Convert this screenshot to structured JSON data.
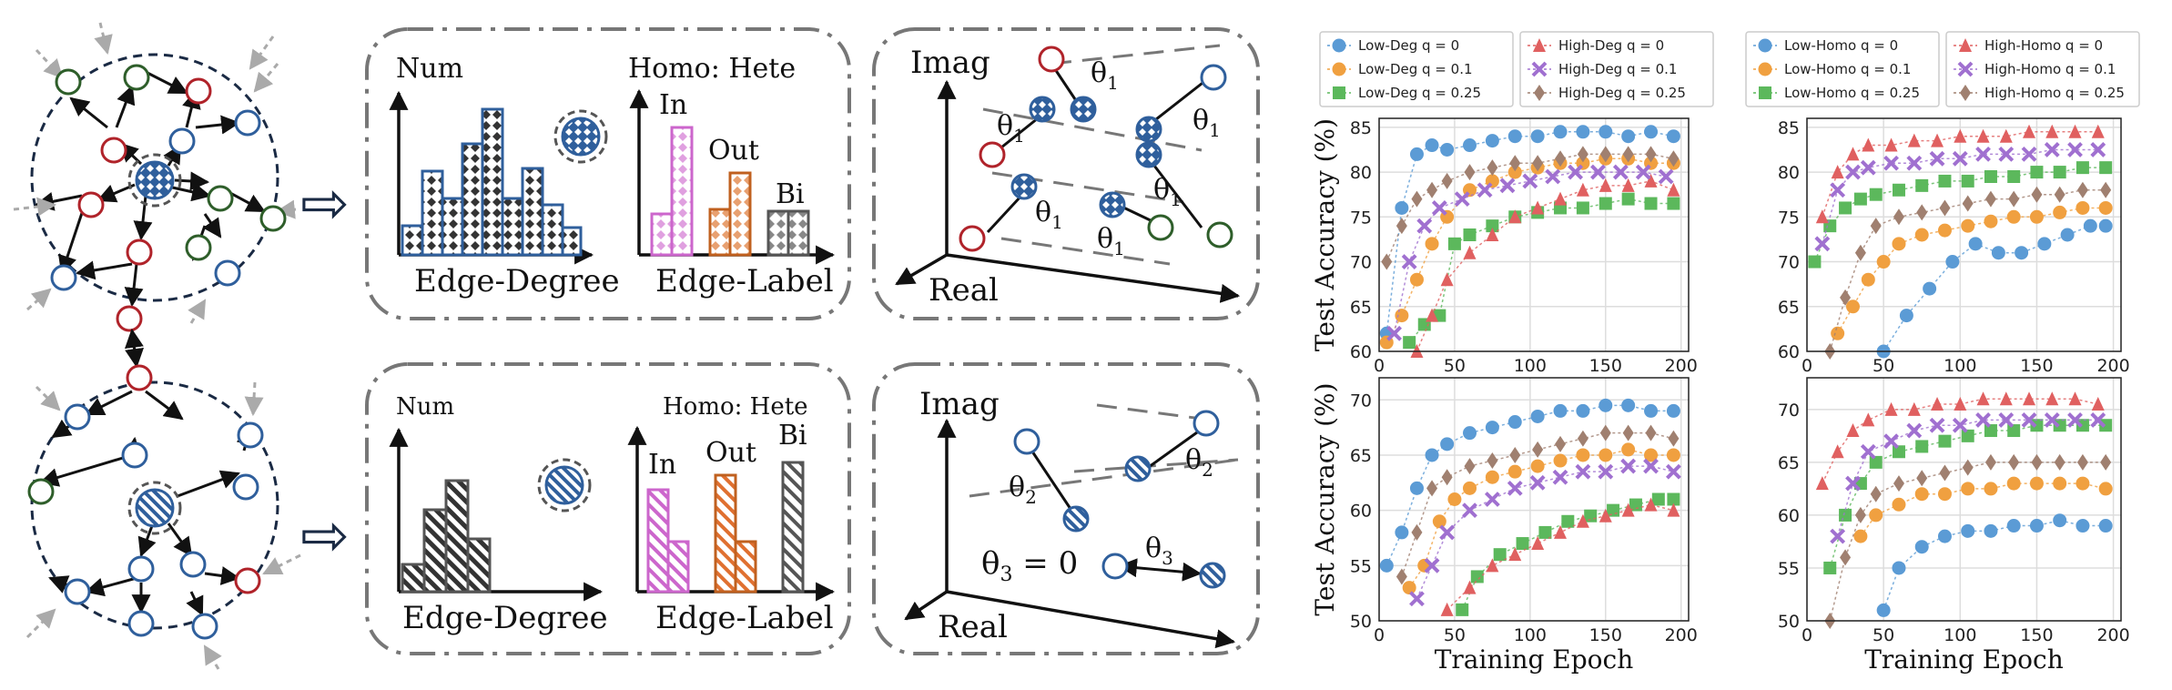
{
  "colors": {
    "blue": "#2f5f9c",
    "red": "#b0232a",
    "green": "#2e5e2a",
    "magenta": "#cc66cc",
    "orange": "#c0601f",
    "gray": "#555555",
    "series_blue": "#5b9bd5",
    "series_orange": "#f0a040",
    "series_green": "#5cb85c",
    "series_red": "#e06060",
    "series_purple": "#a070d0",
    "series_brown": "#a08070"
  },
  "arrow_symbol": "⇨",
  "hist_panels": {
    "top": {
      "num": "Num",
      "homo_hete": "Homo: Hete",
      "in": "In",
      "out": "Out",
      "bi": "Bi",
      "edge_degree": "Edge-Degree",
      "edge_label": "Edge-Label"
    },
    "bottom": {
      "num": "Num",
      "homo_hete": "Homo: Hete",
      "in": "In",
      "out": "Out",
      "bi": "Bi",
      "edge_degree": "Edge-Degree",
      "edge_label": "Edge-Label"
    }
  },
  "phase_panels": {
    "top": {
      "imag": "Imag",
      "real": "Real",
      "theta": "θ",
      "sub": "1"
    },
    "bottom": {
      "imag": "Imag",
      "real": "Real",
      "theta2": "θ",
      "sub2": "2",
      "theta3": "θ",
      "sub3": "3",
      "eq": "θ",
      "eq_sub": "3",
      "eq_rhs": " = 0"
    }
  },
  "chart_data": [
    {
      "type": "line",
      "id": "deg_top",
      "ylabel": "Test Accuracy (%)",
      "xlabel": "",
      "xlim": [
        0,
        205
      ],
      "ylim": [
        60,
        86
      ],
      "xticks": [
        0,
        50,
        100,
        150,
        200
      ],
      "yticks": [
        60,
        65,
        70,
        75,
        80,
        85
      ],
      "grid": true,
      "legend": "top",
      "series": [
        {
          "name": "Low-Deg q = 0",
          "marker": "circle",
          "color": "#5b9bd5",
          "x": [
            5,
            15,
            25,
            35,
            45,
            60,
            75,
            90,
            105,
            120,
            135,
            150,
            165,
            180,
            195
          ],
          "y": [
            62,
            76,
            82,
            83,
            82.5,
            83,
            83.5,
            84,
            84,
            84.5,
            84.5,
            84.5,
            84,
            84.5,
            84
          ]
        },
        {
          "name": "Low-Deg q = 0.1",
          "marker": "circle",
          "color": "#f0a040",
          "x": [
            5,
            15,
            25,
            35,
            45,
            60,
            75,
            90,
            105,
            120,
            135,
            150,
            165,
            180,
            195
          ],
          "y": [
            61,
            64,
            68,
            72,
            75,
            78,
            79,
            80,
            80.5,
            81,
            81,
            81.5,
            81.5,
            81,
            81
          ]
        },
        {
          "name": "Low-Deg q = 0.25",
          "marker": "square",
          "color": "#5cb85c",
          "x": [
            20,
            30,
            40,
            50,
            60,
            75,
            90,
            105,
            120,
            135,
            150,
            165,
            180,
            195
          ],
          "y": [
            61,
            63,
            64,
            72,
            73,
            74,
            75,
            75.5,
            76,
            76,
            76.5,
            77,
            76.5,
            76.5
          ]
        },
        {
          "name": "High-Deg q = 0",
          "marker": "triangle",
          "color": "#e06060",
          "x": [
            25,
            35,
            45,
            60,
            75,
            90,
            105,
            120,
            135,
            150,
            165,
            180,
            195
          ],
          "y": [
            60,
            64,
            68,
            71,
            73,
            75,
            76,
            77,
            78,
            78.5,
            78.5,
            79,
            78
          ]
        },
        {
          "name": "High-Deg q = 0.1",
          "marker": "x",
          "color": "#a070d0",
          "x": [
            10,
            20,
            30,
            40,
            55,
            70,
            85,
            100,
            115,
            130,
            145,
            160,
            175,
            190
          ],
          "y": [
            62,
            70,
            74,
            76,
            77,
            78,
            78.5,
            79,
            79.5,
            80,
            80,
            80,
            80,
            79.5
          ]
        },
        {
          "name": "High-Deg q = 0.25",
          "marker": "diamond",
          "color": "#a08070",
          "x": [
            5,
            15,
            25,
            35,
            45,
            60,
            75,
            90,
            105,
            120,
            135,
            150,
            165,
            180,
            195
          ],
          "y": [
            70,
            74,
            77,
            78,
            79,
            80,
            80.5,
            81,
            81,
            81.5,
            82,
            82,
            82,
            82,
            81.5
          ]
        }
      ]
    },
    {
      "type": "line",
      "id": "deg_bottom",
      "ylabel": "Test Accuracy (%)",
      "xlabel": "Training Epoch",
      "xlim": [
        0,
        205
      ],
      "ylim": [
        50,
        72
      ],
      "xticks": [
        0,
        50,
        100,
        150,
        200
      ],
      "yticks": [
        50,
        55,
        60,
        65,
        70
      ],
      "grid": true,
      "series": [
        {
          "name": "Low-Deg q = 0",
          "marker": "circle",
          "color": "#5b9bd5",
          "x": [
            5,
            15,
            25,
            35,
            45,
            60,
            75,
            90,
            105,
            120,
            135,
            150,
            165,
            180,
            195
          ],
          "y": [
            55,
            58,
            62,
            65,
            66,
            67,
            67.5,
            68,
            68.5,
            69,
            69,
            69.5,
            69.5,
            69,
            69
          ]
        },
        {
          "name": "Low-Deg q = 0.1",
          "marker": "circle",
          "color": "#f0a040",
          "x": [
            20,
            30,
            40,
            50,
            60,
            75,
            90,
            105,
            120,
            135,
            150,
            165,
            180,
            195
          ],
          "y": [
            53,
            55,
            59,
            61,
            62,
            63,
            63.5,
            64,
            64.5,
            65,
            65,
            65.5,
            65,
            65
          ]
        },
        {
          "name": "Low-Deg q = 0.25",
          "marker": "square",
          "color": "#5cb85c",
          "x": [
            55,
            65,
            80,
            95,
            110,
            125,
            140,
            155,
            170,
            185,
            195
          ],
          "y": [
            51,
            54,
            56,
            57,
            58,
            59,
            59.5,
            60,
            60.5,
            61,
            61
          ]
        },
        {
          "name": "High-Deg q = 0",
          "marker": "triangle",
          "color": "#e06060",
          "x": [
            45,
            60,
            75,
            90,
            105,
            120,
            135,
            150,
            165,
            180,
            195
          ],
          "y": [
            51,
            53,
            55,
            56,
            57,
            58,
            59,
            59.5,
            60,
            60.5,
            60
          ]
        },
        {
          "name": "High-Deg q = 0.1",
          "marker": "x",
          "color": "#a070d0",
          "x": [
            25,
            35,
            45,
            60,
            75,
            90,
            105,
            120,
            135,
            150,
            165,
            180,
            195
          ],
          "y": [
            52,
            55,
            58,
            60,
            61,
            62,
            62.5,
            63,
            63.5,
            63.5,
            64,
            64,
            63.5
          ]
        },
        {
          "name": "High-Deg q = 0.25",
          "marker": "diamond",
          "color": "#a08070",
          "x": [
            15,
            25,
            35,
            45,
            60,
            75,
            90,
            105,
            120,
            135,
            150,
            165,
            180,
            195
          ],
          "y": [
            54,
            58,
            62,
            63,
            64,
            64.5,
            65,
            65.5,
            66,
            66.5,
            67,
            67,
            67,
            66.5
          ]
        }
      ]
    },
    {
      "type": "line",
      "id": "homo_top",
      "ylabel": "",
      "xlabel": "",
      "xlim": [
        0,
        205
      ],
      "ylim": [
        60,
        86
      ],
      "xticks": [
        0,
        50,
        100,
        150,
        200
      ],
      "yticks": [
        60,
        65,
        70,
        75,
        80,
        85
      ],
      "grid": true,
      "legend": "top",
      "series": [
        {
          "name": "Low-Homo q = 0",
          "marker": "circle",
          "color": "#5b9bd5",
          "x": [
            50,
            65,
            80,
            95,
            110,
            125,
            140,
            155,
            170,
            185,
            195
          ],
          "y": [
            60,
            64,
            67,
            70,
            72,
            71,
            71,
            72,
            73,
            74,
            74
          ]
        },
        {
          "name": "Low-Homo q = 0.1",
          "marker": "circle",
          "color": "#f0a040",
          "x": [
            20,
            30,
            40,
            50,
            60,
            75,
            90,
            105,
            120,
            135,
            150,
            165,
            180,
            195
          ],
          "y": [
            62,
            65,
            68,
            70,
            72,
            73,
            73.5,
            74,
            74.5,
            75,
            75,
            75.5,
            76,
            76
          ]
        },
        {
          "name": "Low-Homo q = 0.25",
          "marker": "square",
          "color": "#5cb85c",
          "x": [
            5,
            15,
            25,
            35,
            45,
            60,
            75,
            90,
            105,
            120,
            135,
            150,
            165,
            180,
            195
          ],
          "y": [
            70,
            74,
            76,
            77,
            77.5,
            78,
            78.5,
            79,
            79,
            79.5,
            79.5,
            80,
            80,
            80.5,
            80.5
          ]
        },
        {
          "name": "High-Homo q = 0",
          "marker": "triangle",
          "color": "#e06060",
          "x": [
            10,
            20,
            30,
            40,
            55,
            70,
            85,
            100,
            115,
            130,
            145,
            160,
            175,
            190
          ],
          "y": [
            75,
            80,
            82,
            83,
            83,
            83.5,
            83.5,
            84,
            84,
            84,
            84.5,
            84.5,
            84.5,
            84.5
          ]
        },
        {
          "name": "High-Homo q = 0.1",
          "marker": "x",
          "color": "#a070d0",
          "x": [
            10,
            20,
            30,
            40,
            55,
            70,
            85,
            100,
            115,
            130,
            145,
            160,
            175,
            190
          ],
          "y": [
            72,
            78,
            80,
            80.5,
            81,
            81,
            81.5,
            81.5,
            82,
            82,
            82,
            82.5,
            82.5,
            82.5
          ]
        },
        {
          "name": "High-Homo q = 0.25",
          "marker": "diamond",
          "color": "#a08070",
          "x": [
            15,
            25,
            35,
            45,
            60,
            75,
            90,
            105,
            120,
            135,
            150,
            165,
            180,
            195
          ],
          "y": [
            60,
            66,
            71,
            74,
            75,
            75.5,
            76,
            76.5,
            77,
            77,
            77.5,
            77.5,
            78,
            78
          ]
        }
      ]
    },
    {
      "type": "line",
      "id": "homo_bottom",
      "ylabel": "",
      "xlabel": "Training Epoch",
      "xlim": [
        0,
        205
      ],
      "ylim": [
        50,
        73
      ],
      "xticks": [
        0,
        50,
        100,
        150,
        200
      ],
      "yticks": [
        50,
        55,
        60,
        65,
        70
      ],
      "grid": true,
      "series": [
        {
          "name": "Low-Homo q = 0",
          "marker": "circle",
          "color": "#5b9bd5",
          "x": [
            50,
            60,
            75,
            90,
            105,
            120,
            135,
            150,
            165,
            180,
            195
          ],
          "y": [
            51,
            55,
            57,
            58,
            58.5,
            58.5,
            59,
            59,
            59.5,
            59,
            59
          ]
        },
        {
          "name": "Low-Homo q = 0.1",
          "marker": "circle",
          "color": "#f0a040",
          "x": [
            35,
            45,
            60,
            75,
            90,
            105,
            120,
            135,
            150,
            165,
            180,
            195
          ],
          "y": [
            58,
            60,
            61,
            62,
            62,
            62.5,
            62.5,
            63,
            63,
            63,
            63,
            62.5
          ]
        },
        {
          "name": "Low-Homo q = 0.25",
          "marker": "square",
          "color": "#5cb85c",
          "x": [
            15,
            25,
            35,
            45,
            60,
            75,
            90,
            105,
            120,
            135,
            150,
            165,
            180,
            195
          ],
          "y": [
            55,
            60,
            63,
            65,
            66,
            66.5,
            67,
            67.5,
            68,
            68,
            68.5,
            68.5,
            68.5,
            68.5
          ]
        },
        {
          "name": "High-Homo q = 0",
          "marker": "triangle",
          "color": "#e06060",
          "x": [
            10,
            20,
            30,
            40,
            55,
            70,
            85,
            100,
            115,
            130,
            145,
            160,
            175,
            190
          ],
          "y": [
            63,
            66,
            68,
            69,
            70,
            70,
            70.5,
            70.5,
            71,
            71,
            71,
            71,
            71,
            70.5
          ]
        },
        {
          "name": "High-Homo q = 0.1",
          "marker": "x",
          "color": "#a070d0",
          "x": [
            20,
            30,
            40,
            55,
            70,
            85,
            100,
            115,
            130,
            145,
            160,
            175,
            190
          ],
          "y": [
            58,
            63,
            66,
            67,
            68,
            68.5,
            68.5,
            69,
            69,
            69,
            69,
            69,
            69
          ]
        },
        {
          "name": "High-Homo q = 0.25",
          "marker": "diamond",
          "color": "#a08070",
          "x": [
            15,
            25,
            35,
            45,
            60,
            75,
            90,
            105,
            120,
            135,
            150,
            165,
            180,
            195
          ],
          "y": [
            50,
            56,
            60,
            62,
            63,
            63.5,
            64,
            64.5,
            65,
            65,
            65,
            65,
            65,
            65
          ]
        }
      ]
    }
  ]
}
